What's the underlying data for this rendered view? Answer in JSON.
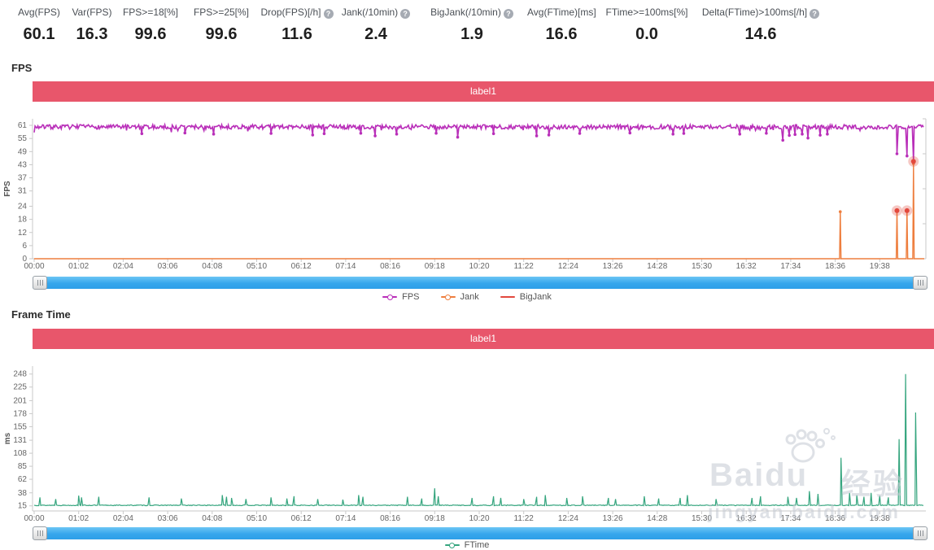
{
  "summary": {
    "metrics": [
      {
        "label": "Avg(FPS)",
        "value": "60.1",
        "help": false
      },
      {
        "label": "Var(FPS)",
        "value": "16.3",
        "help": false
      },
      {
        "label": "FPS>=18[%]",
        "value": "99.6",
        "help": false
      },
      {
        "label": "FPS>=25[%]",
        "value": "99.6",
        "help": false
      },
      {
        "label": "Drop(FPS)[/h]",
        "value": "11.6",
        "help": true
      },
      {
        "label": "Jank(/10min)",
        "value": "2.4",
        "help": true
      },
      {
        "label": "BigJank(/10min)",
        "value": "1.9",
        "help": true
      },
      {
        "label": "Avg(FTime)[ms]",
        "value": "16.6",
        "help": false
      },
      {
        "label": "FTime>=100ms[%]",
        "value": "0.0",
        "help": false
      },
      {
        "label": "Delta(FTime)>100ms[/h]",
        "value": "14.6",
        "help": true
      }
    ]
  },
  "sections": {
    "fps": {
      "title": "FPS"
    },
    "ftime": {
      "title": "Frame Time"
    }
  },
  "watermark": {
    "brand": "Baidu",
    "brand_cn": "经验",
    "url": "jingyan.baidu.com"
  },
  "colors": {
    "banner": "#e8566b",
    "fps_line": "#b92fb9",
    "jank_line": "#ee7e3e",
    "bigjank": "#e2483d",
    "ftime_line": "#35a57e",
    "scrollbar": "#36a6ec",
    "axis": "#c9c9c9",
    "tick_text": "#666666"
  },
  "chart_data": [
    {
      "type": "line",
      "title": "label1",
      "ylabel": "FPS",
      "yticks": [
        0,
        6,
        12,
        18,
        24,
        31,
        37,
        43,
        49,
        55,
        61
      ],
      "ylim": [
        0,
        64
      ],
      "xlim_minutes": [
        0,
        1240
      ],
      "xtick_interval_min": 62,
      "xtick_labels": [
        "00:00",
        "01:02",
        "02:04",
        "03:06",
        "04:08",
        "05:10",
        "06:12",
        "07:14",
        "08:16",
        "09:18",
        "10:20",
        "11:22",
        "12:24",
        "13:26",
        "14:28",
        "15:30",
        "16:32",
        "17:34",
        "18:36",
        "19:38"
      ],
      "grid": false,
      "right_axis": true,
      "legend_position": "bottom",
      "series": [
        {
          "name": "FPS",
          "kind": "noisy-baseline",
          "color": "#b92fb9",
          "baseline": 60.3,
          "noise": 1.0,
          "dips": [
            [
              150,
              57.2
            ],
            [
              210,
              57.5
            ],
            [
              250,
              57.0
            ],
            [
              330,
              57.3
            ],
            [
              388,
              56.6
            ],
            [
              404,
              57.2
            ],
            [
              455,
              57.4
            ],
            [
              475,
              56.2
            ],
            [
              505,
              57.0
            ],
            [
              560,
              57.4
            ],
            [
              590,
              55.6
            ],
            [
              640,
              57.2
            ],
            [
              700,
              56.2
            ],
            [
              717,
              56.6
            ],
            [
              760,
              57.3
            ],
            [
              830,
              57.5
            ],
            [
              890,
              57.0
            ],
            [
              905,
              57.3
            ],
            [
              983,
              57.0
            ],
            [
              1020,
              57.4
            ],
            [
              1043,
              54.2
            ],
            [
              1052,
              56.4
            ],
            [
              1060,
              56.8
            ],
            [
              1070,
              57.0
            ],
            [
              1078,
              55.2
            ],
            [
              1095,
              56.5
            ],
            [
              1105,
              57.0
            ],
            [
              1202,
              48.0
            ],
            [
              1216,
              47.0
            ],
            [
              1225,
              44.5
            ]
          ]
        },
        {
          "name": "Jank",
          "kind": "spikes",
          "color": "#ee7e3e",
          "baseline": 0,
          "spikes": [
            [
              1123,
              21.5
            ],
            [
              1202,
              22.0
            ],
            [
              1216,
              22.0
            ],
            [
              1225,
              43.5
            ]
          ]
        },
        {
          "name": "BigJank",
          "kind": "markers",
          "color": "#e2483d",
          "points": [
            [
              1202,
              22.0
            ],
            [
              1216,
              22.0
            ],
            [
              1225,
              44.5
            ]
          ]
        }
      ],
      "legend": [
        {
          "label": "FPS",
          "color": "#b92fb9",
          "marker": "dot-line"
        },
        {
          "label": "Jank",
          "color": "#ee7e3e",
          "marker": "dot-line"
        },
        {
          "label": "BigJank",
          "color": "#e2483d",
          "marker": "line"
        }
      ]
    },
    {
      "type": "line",
      "title": "label1",
      "ylabel": "ms",
      "yticks": [
        15,
        38,
        62,
        85,
        108,
        131,
        155,
        178,
        201,
        225,
        248
      ],
      "ylim": [
        6,
        262
      ],
      "xlim_minutes": [
        0,
        1240
      ],
      "xtick_interval_min": 62,
      "xtick_labels": [
        "00:00",
        "01:02",
        "02:04",
        "03:06",
        "04:08",
        "05:10",
        "06:12",
        "07:14",
        "08:16",
        "09:18",
        "10:20",
        "11:22",
        "12:24",
        "13:26",
        "14:28",
        "15:30",
        "16:32",
        "17:34",
        "18:36",
        "19:38"
      ],
      "grid": false,
      "right_axis": false,
      "legend_position": "bottom",
      "series": [
        {
          "name": "FTime",
          "kind": "noisy-baseline-spikes",
          "color": "#35a57e",
          "baseline": 16,
          "noise": 0.7,
          "spikes": [
            [
              8,
              30
            ],
            [
              30,
              27
            ],
            [
              62,
              33
            ],
            [
              66,
              30
            ],
            [
              90,
              31
            ],
            [
              160,
              30
            ],
            [
              205,
              28
            ],
            [
              262,
              34
            ],
            [
              268,
              31
            ],
            [
              275,
              29
            ],
            [
              295,
              27
            ],
            [
              330,
              30
            ],
            [
              352,
              28
            ],
            [
              362,
              32
            ],
            [
              395,
              27
            ],
            [
              430,
              26
            ],
            [
              452,
              34
            ],
            [
              458,
              31
            ],
            [
              520,
              31
            ],
            [
              540,
              28
            ],
            [
              558,
              46
            ],
            [
              563,
              32
            ],
            [
              610,
              29
            ],
            [
              640,
              32
            ],
            [
              650,
              29
            ],
            [
              682,
              27
            ],
            [
              700,
              31
            ],
            [
              712,
              34
            ],
            [
              742,
              29
            ],
            [
              764,
              32
            ],
            [
              800,
              29
            ],
            [
              810,
              27
            ],
            [
              850,
              32
            ],
            [
              870,
              28
            ],
            [
              900,
              29
            ],
            [
              910,
              34
            ],
            [
              950,
              27
            ],
            [
              1000,
              29
            ],
            [
              1012,
              32
            ],
            [
              1050,
              31
            ],
            [
              1062,
              29
            ],
            [
              1080,
              41
            ],
            [
              1092,
              36
            ],
            [
              1124,
              100
            ],
            [
              1136,
              38
            ],
            [
              1146,
              34
            ],
            [
              1156,
              31
            ],
            [
              1166,
              38
            ],
            [
              1178,
              33
            ],
            [
              1190,
              30
            ],
            [
              1205,
              133
            ],
            [
              1214,
              248
            ],
            [
              1228,
              180
            ]
          ]
        }
      ],
      "legend": [
        {
          "label": "FTime",
          "color": "#35a57e",
          "marker": "dot-line"
        }
      ]
    }
  ]
}
